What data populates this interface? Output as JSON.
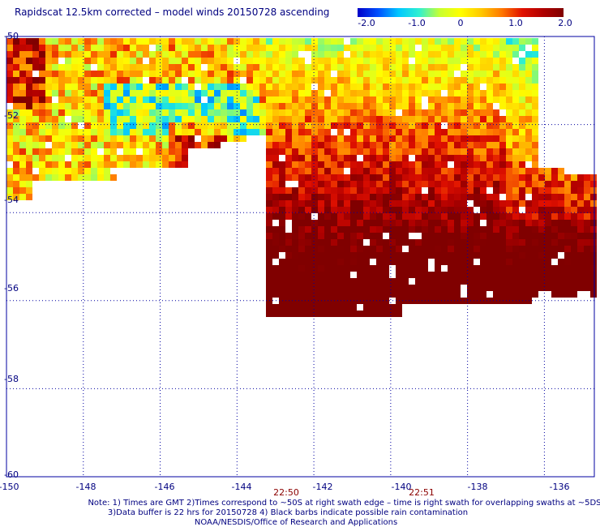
{
  "title": "Rapidscat 12.5km corrected – model winds 20150728 ascending",
  "colorbar": {
    "ticks": [
      "-2.0",
      "-1.0",
      "0",
      "1.0",
      "2.0"
    ],
    "range": [
      -2.0,
      2.0
    ],
    "colors": [
      "#0000c8",
      "#0050ff",
      "#00c8ff",
      "#30f0d0",
      "#c8ff30",
      "#ffff00",
      "#ffc800",
      "#ff7800",
      "#e01000",
      "#b00000",
      "#800000"
    ]
  },
  "map": {
    "lat_labels": [
      "-50",
      "-52",
      "-54",
      "-56",
      "-58",
      "-60"
    ],
    "lon_labels": [
      "-150",
      "-148",
      "-146",
      "-144",
      "-142",
      "-140",
      "-138",
      "-136"
    ],
    "lat_range": [
      -60,
      -50
    ],
    "lon_range": [
      -150,
      -134.7
    ],
    "grid_color": "#0000a0",
    "swath_times": [
      "22:50",
      "22:51"
    ]
  },
  "notes": [
    "Note: 1) Times are GMT 2)Times correspond to ~50S at right swath edge – time is right swath for overlapping swaths at ~5DS",
    "3)Data buffer is 22 hrs for 20150728 4) Black barbs indicate possible rain contamination",
    "NOAA/NESDIS/Office of Research and Applications"
  ]
}
